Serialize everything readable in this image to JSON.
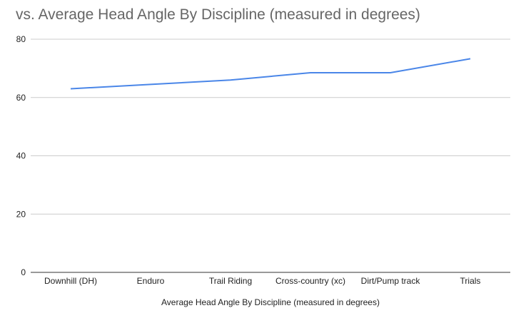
{
  "chart_data": {
    "type": "line",
    "title": "vs. Average Head Angle By Discipline (measured in degrees)",
    "xlabel": "Average Head Angle By Discipline (measured in degrees)",
    "ylabel": "",
    "categories": [
      "Downhill (DH)",
      "Enduro",
      "Trail Riding",
      "Cross-country (xc)",
      "Dirt/Pump track",
      "Trials"
    ],
    "series": [
      {
        "values": [
          63,
          64.5,
          66,
          68.5,
          68.5,
          73.3
        ],
        "color": "#4a86e8"
      }
    ],
    "ylim": [
      0,
      80
    ],
    "yticks": [
      0,
      20,
      40,
      60,
      80
    ],
    "grid": true,
    "legend": "none"
  }
}
